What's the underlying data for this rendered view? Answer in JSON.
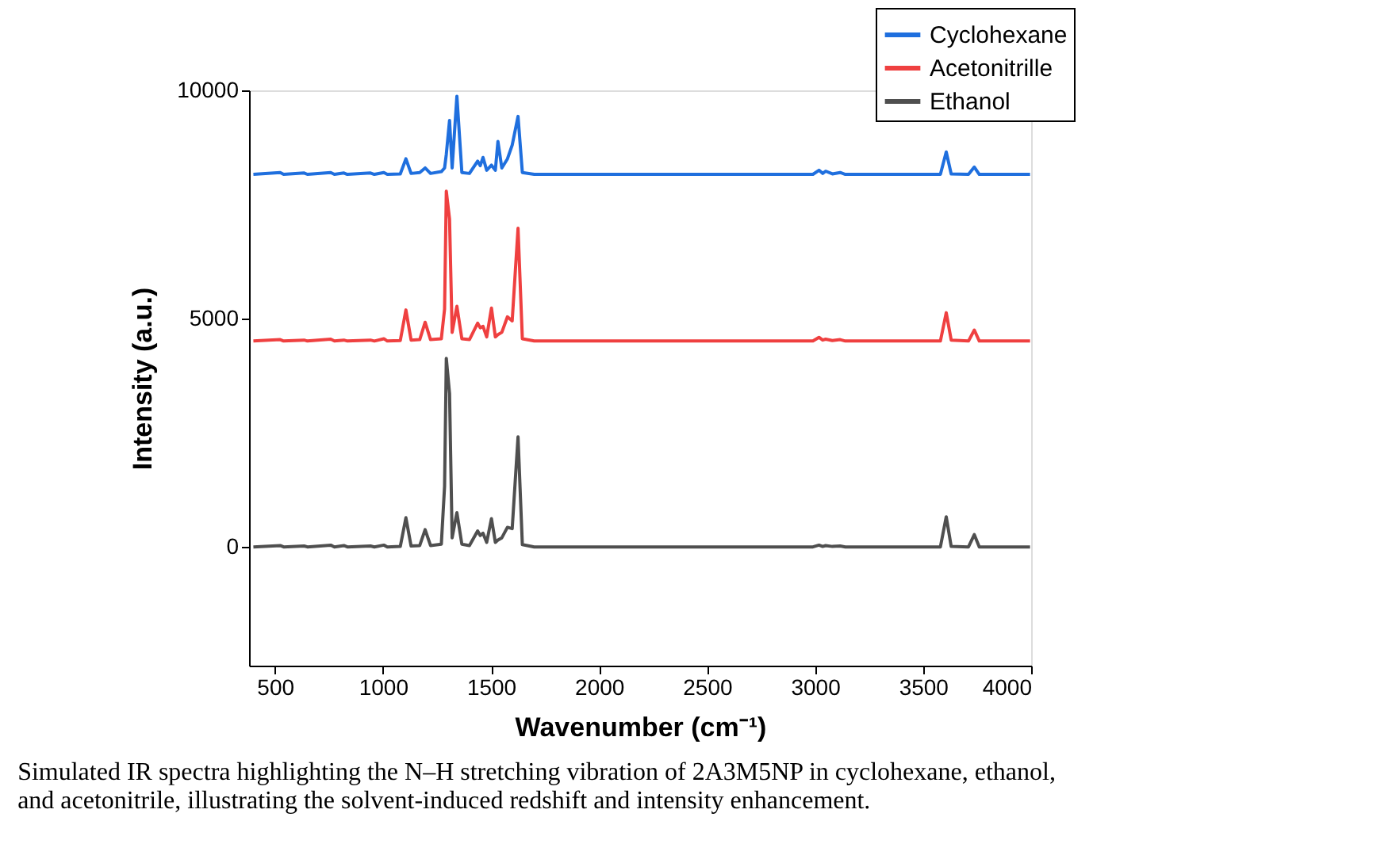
{
  "chart_data": {
    "type": "line",
    "xlabel": "Wavenumber (cm⁻¹)",
    "ylabel": "Intensity (a.u.)",
    "x": [
      400,
      524,
      540,
      635,
      650,
      758,
      775,
      819,
      835,
      942,
      960,
      1004,
      1020,
      1080,
      1106,
      1130,
      1170,
      1195,
      1220,
      1270,
      1285,
      1293,
      1308,
      1320,
      1342,
      1365,
      1400,
      1438,
      1450,
      1463,
      1480,
      1502,
      1520,
      1532,
      1550,
      1576,
      1598,
      1625,
      1645,
      1700,
      2990,
      3018,
      3035,
      3049,
      3080,
      3116,
      3140,
      3580,
      3607,
      3630,
      3710,
      3737,
      3760,
      3995
    ],
    "series": [
      {
        "name": "Cyclohexane",
        "color": "#1f6fde",
        "values": [
          8160,
          8200,
          8160,
          8190,
          8160,
          8200,
          8160,
          8190,
          8160,
          8190,
          8160,
          8200,
          8160,
          8170,
          8500,
          8180,
          8200,
          8300,
          8180,
          8220,
          8300,
          8600,
          9340,
          8300,
          9870,
          8200,
          8180,
          8450,
          8350,
          8530,
          8250,
          8360,
          8250,
          8880,
          8300,
          8500,
          8800,
          9430,
          8200,
          8160,
          8160,
          8250,
          8180,
          8230,
          8170,
          8200,
          8160,
          8160,
          8650,
          8170,
          8160,
          8320,
          8160,
          8160
        ]
      },
      {
        "name": "Acetonitrille",
        "color": "#ef4040",
        "values": [
          4510,
          4540,
          4510,
          4530,
          4510,
          4550,
          4510,
          4530,
          4510,
          4530,
          4510,
          4560,
          4510,
          4520,
          5190,
          4530,
          4540,
          4920,
          4540,
          4560,
          5210,
          7790,
          7180,
          4700,
          5270,
          4560,
          4540,
          4900,
          4800,
          4830,
          4600,
          5230,
          4600,
          4650,
          4700,
          5040,
          4950,
          6980,
          4560,
          4510,
          4510,
          4590,
          4530,
          4550,
          4520,
          4540,
          4510,
          4510,
          5130,
          4530,
          4510,
          4750,
          4510,
          4510
        ]
      },
      {
        "name": "Ethanol",
        "color": "#4f4f4f",
        "values": [
          0,
          30,
          0,
          20,
          0,
          40,
          0,
          30,
          0,
          20,
          0,
          40,
          0,
          10,
          640,
          20,
          30,
          380,
          30,
          60,
          1330,
          4130,
          3360,
          200,
          750,
          60,
          30,
          350,
          250,
          300,
          100,
          620,
          100,
          150,
          200,
          430,
          400,
          2410,
          50,
          0,
          0,
          40,
          10,
          30,
          10,
          20,
          0,
          0,
          660,
          10,
          0,
          270,
          0,
          0
        ]
      }
    ],
    "xlim": [
      380,
      4000
    ],
    "xticks": [
      500,
      1000,
      1500,
      2000,
      2500,
      3000,
      3500,
      4000
    ],
    "ylim": [
      -2600,
      10000
    ],
    "yticks": [
      0,
      5000,
      10000
    ],
    "grid": false,
    "legend": "top right",
    "marker": "none",
    "line_style": "solid",
    "annotations": [
      "Simulated IR spectra highlighting the N–H stretching vibration of 2A3M5NP in cyclohexane, ethanol, and acetonitrile, illustrating the solvent-induced redshift and intensity enhancement."
    ]
  }
}
